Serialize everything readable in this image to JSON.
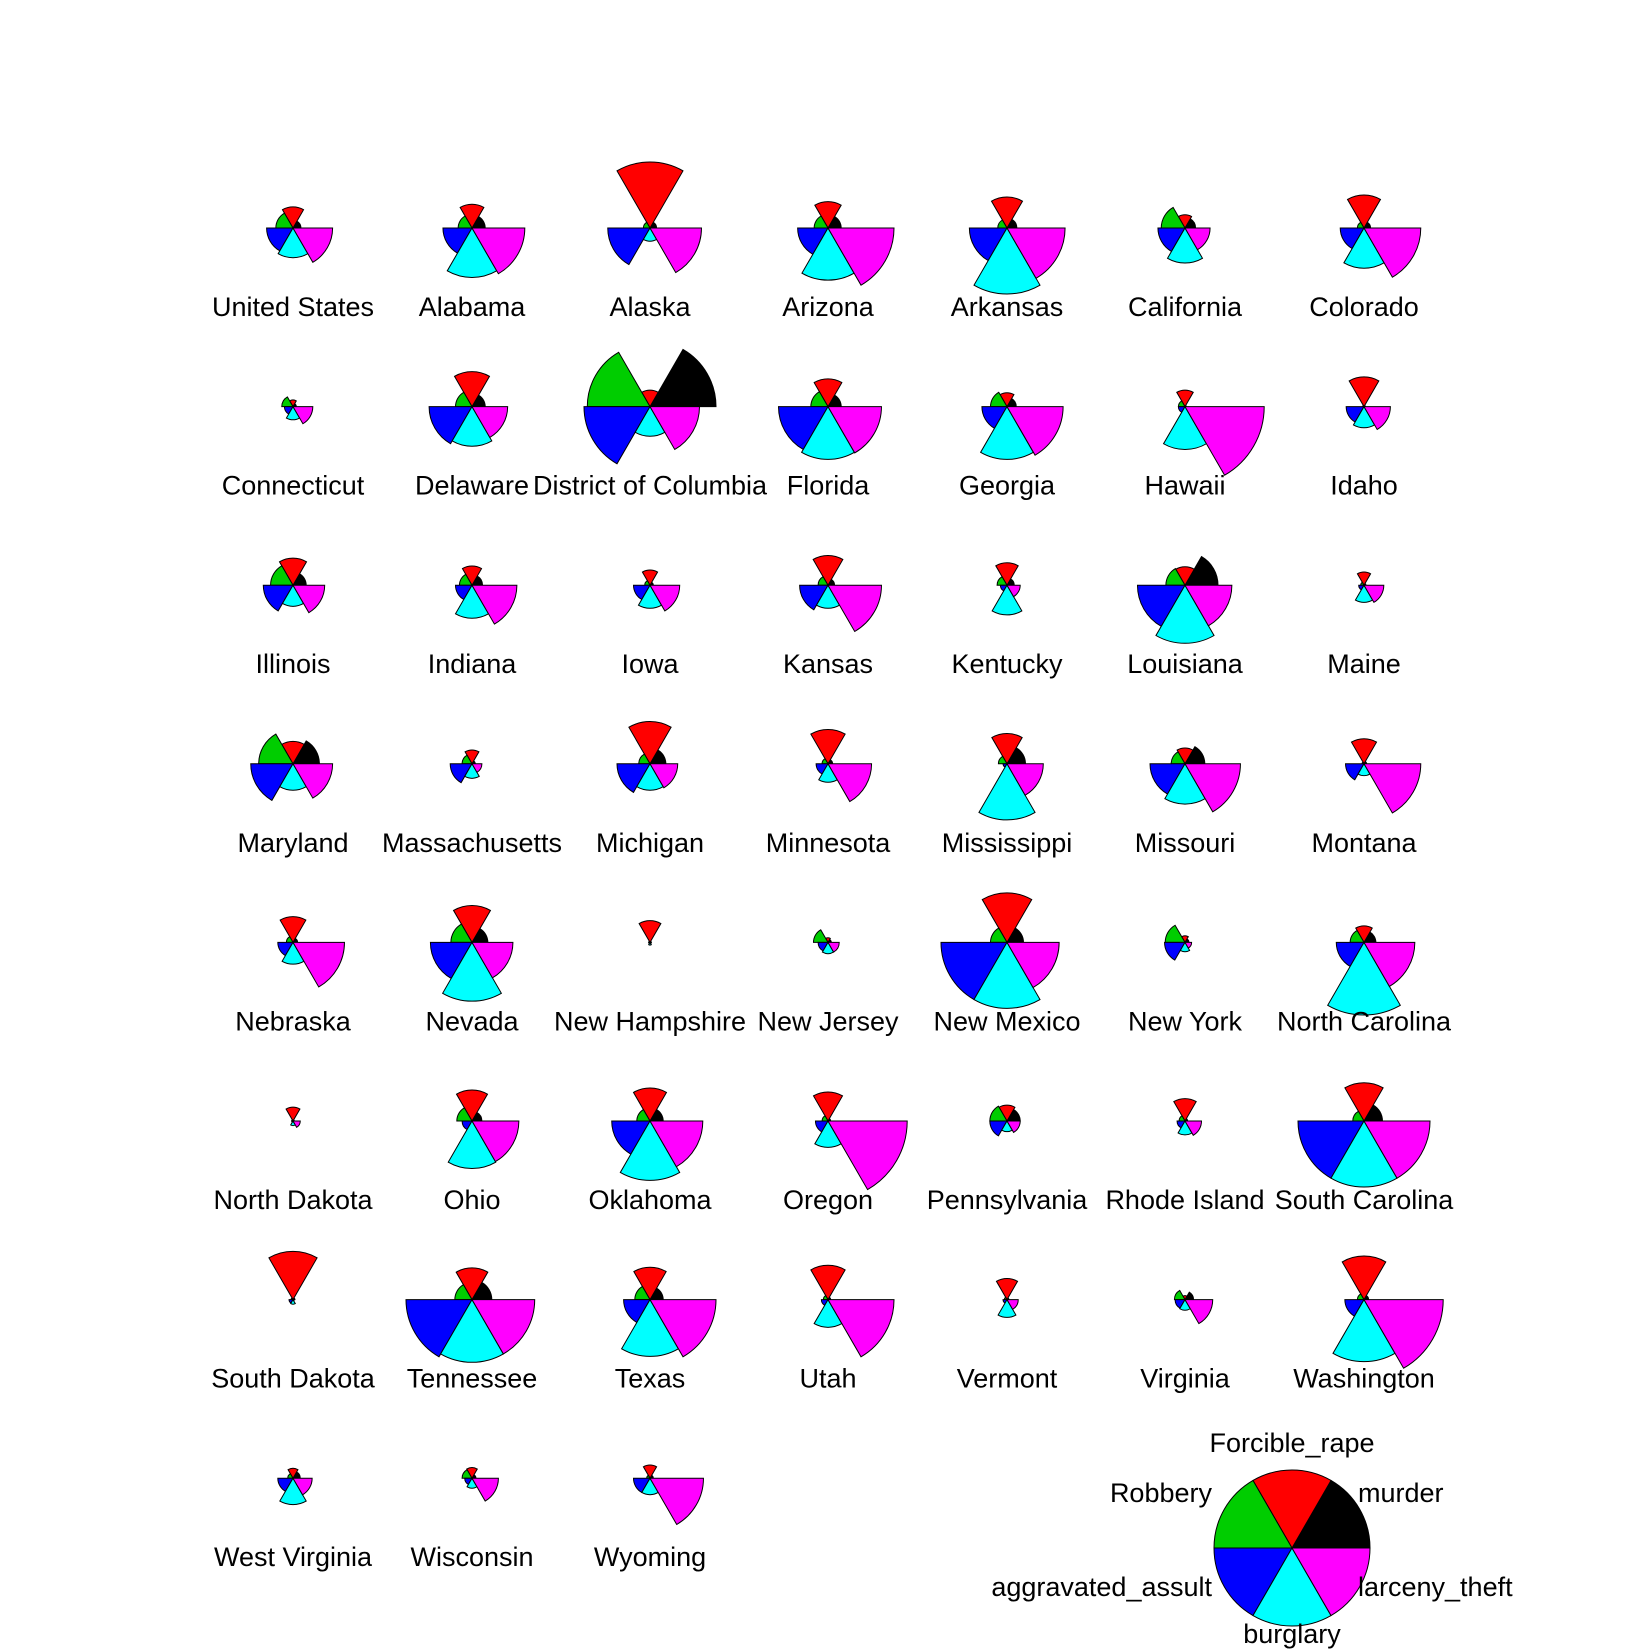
{
  "chart_data": {
    "type": "star-segment",
    "variables": [
      "murder",
      "Forcible_rape",
      "Robbery",
      "aggravated_assult",
      "burglary",
      "larceny_theft"
    ],
    "colors": [
      "#000000",
      "#ff0000",
      "#00cd00",
      "#0000ff",
      "#00ffff",
      "#ff00ff"
    ],
    "legend_position": "bottom-right",
    "states": [
      {
        "name": "United States",
        "values": [
          0.12,
          0.32,
          0.26,
          0.4,
          0.45,
          0.6
        ]
      },
      {
        "name": "Alabama",
        "values": [
          0.2,
          0.36,
          0.21,
          0.44,
          0.75,
          0.8
        ]
      },
      {
        "name": "Alaska",
        "values": [
          0.1,
          1.0,
          0.1,
          0.64,
          0.2,
          0.78
        ]
      },
      {
        "name": "Arizona",
        "values": [
          0.2,
          0.4,
          0.21,
          0.46,
          0.79,
          1.0
        ]
      },
      {
        "name": "Arkansas",
        "values": [
          0.15,
          0.47,
          0.14,
          0.57,
          1.0,
          0.88
        ]
      },
      {
        "name": "California",
        "values": [
          0.16,
          0.2,
          0.36,
          0.41,
          0.53,
          0.38
        ]
      },
      {
        "name": "Colorado",
        "values": [
          0.1,
          0.5,
          0.1,
          0.36,
          0.61,
          0.86
        ]
      },
      {
        "name": "Connecticut",
        "values": [
          0.05,
          0.1,
          0.17,
          0.13,
          0.2,
          0.3
        ]
      },
      {
        "name": "Delaware",
        "values": [
          0.2,
          0.53,
          0.25,
          0.65,
          0.6,
          0.54
        ]
      },
      {
        "name": "District of Columbia",
        "values": [
          1.0,
          0.25,
          0.95,
          1.0,
          0.45,
          0.75
        ]
      },
      {
        "name": "Florida",
        "values": [
          0.2,
          0.42,
          0.26,
          0.75,
          0.8,
          0.81
        ]
      },
      {
        "name": "Georgia",
        "values": [
          0.14,
          0.21,
          0.25,
          0.38,
          0.8,
          0.85
        ]
      },
      {
        "name": "Hawaii",
        "values": [
          0.02,
          0.25,
          0.1,
          0.1,
          0.65,
          1.2
        ]
      },
      {
        "name": "Idaho",
        "values": [
          0.02,
          0.45,
          0.02,
          0.27,
          0.32,
          0.4
        ]
      },
      {
        "name": "Illinois",
        "values": [
          0.2,
          0.41,
          0.34,
          0.45,
          0.32,
          0.48
        ]
      },
      {
        "name": "Indiana",
        "values": [
          0.16,
          0.29,
          0.19,
          0.25,
          0.5,
          0.68
        ]
      },
      {
        "name": "Iowa",
        "values": [
          0.05,
          0.23,
          0.08,
          0.25,
          0.35,
          0.45
        ]
      },
      {
        "name": "Kansas",
        "values": [
          0.1,
          0.45,
          0.15,
          0.43,
          0.35,
          0.81
        ]
      },
      {
        "name": "Kentucky",
        "values": [
          0.11,
          0.34,
          0.15,
          0.1,
          0.45,
          0.2
        ]
      },
      {
        "name": "Louisiana",
        "values": [
          0.5,
          0.28,
          0.29,
          0.72,
          0.88,
          0.71
        ]
      },
      {
        "name": "Maine",
        "values": [
          0.03,
          0.2,
          0.05,
          0.08,
          0.26,
          0.3
        ]
      },
      {
        "name": "Maryland",
        "values": [
          0.4,
          0.34,
          0.52,
          0.64,
          0.4,
          0.6
        ]
      },
      {
        "name": "Massachusetts",
        "values": [
          0.05,
          0.21,
          0.15,
          0.33,
          0.22,
          0.15
        ]
      },
      {
        "name": "Michigan",
        "values": [
          0.24,
          0.64,
          0.17,
          0.5,
          0.4,
          0.42
        ]
      },
      {
        "name": "Minnesota",
        "values": [
          0.07,
          0.52,
          0.09,
          0.18,
          0.28,
          0.66
        ]
      },
      {
        "name": "Mississippi",
        "values": [
          0.28,
          0.46,
          0.13,
          0.06,
          0.85,
          0.55
        ]
      },
      {
        "name": "Missouri",
        "values": [
          0.3,
          0.24,
          0.21,
          0.53,
          0.61,
          0.84
        ]
      },
      {
        "name": "Montana",
        "values": [
          0.04,
          0.38,
          0.03,
          0.28,
          0.18,
          0.86
        ]
      },
      {
        "name": "Nebraska",
        "values": [
          0.07,
          0.39,
          0.1,
          0.23,
          0.33,
          0.78
        ]
      },
      {
        "name": "Nevada",
        "values": [
          0.24,
          0.56,
          0.32,
          0.63,
          0.89,
          0.62
        ]
      },
      {
        "name": "New Hampshire",
        "values": [
          0.02,
          0.33,
          0.02,
          0.02,
          0.04,
          0.02
        ]
      },
      {
        "name": "New Jersey",
        "values": [
          0.05,
          0.07,
          0.22,
          0.15,
          0.17,
          0.17
        ]
      },
      {
        "name": "New Mexico",
        "values": [
          0.25,
          0.75,
          0.25,
          1.0,
          1.0,
          0.79
        ]
      },
      {
        "name": "New York",
        "values": [
          0.06,
          0.1,
          0.3,
          0.31,
          0.14,
          0.1
        ]
      },
      {
        "name": "North Carolina",
        "values": [
          0.18,
          0.25,
          0.21,
          0.42,
          1.1,
          0.77
        ]
      },
      {
        "name": "North Dakota",
        "values": [
          0.02,
          0.21,
          0.02,
          0.02,
          0.07,
          0.11
        ]
      },
      {
        "name": "Ohio",
        "values": [
          0.15,
          0.47,
          0.23,
          0.15,
          0.72,
          0.71
        ]
      },
      {
        "name": "Oklahoma",
        "values": [
          0.2,
          0.5,
          0.2,
          0.58,
          0.9,
          0.8
        ]
      },
      {
        "name": "Oregon",
        "values": [
          0.04,
          0.44,
          0.09,
          0.19,
          0.4,
          1.2
        ]
      },
      {
        "name": "Pennsylvania",
        "values": [
          0.2,
          0.24,
          0.26,
          0.26,
          0.16,
          0.2
        ]
      },
      {
        "name": "Rhode Island",
        "values": [
          0.04,
          0.34,
          0.09,
          0.12,
          0.21,
          0.25
        ]
      },
      {
        "name": "South Carolina",
        "values": [
          0.28,
          0.58,
          0.17,
          1.0,
          1.0,
          1.0
        ]
      },
      {
        "name": "South Dakota",
        "values": [
          0.03,
          0.73,
          0.03,
          0.06,
          0.07,
          0.02
        ]
      },
      {
        "name": "Tennessee",
        "values": [
          0.3,
          0.48,
          0.26,
          1.0,
          0.95,
          0.95
        ]
      },
      {
        "name": "Texas",
        "values": [
          0.2,
          0.49,
          0.23,
          0.4,
          0.86,
          1.0
        ]
      },
      {
        "name": "Utah",
        "values": [
          0.04,
          0.52,
          0.07,
          0.1,
          0.42,
          1.0
        ]
      },
      {
        "name": "Vermont",
        "values": [
          0.03,
          0.32,
          0.04,
          0.06,
          0.27,
          0.17
        ]
      },
      {
        "name": "Virginia",
        "values": [
          0.13,
          0.06,
          0.16,
          0.15,
          0.16,
          0.42
        ]
      },
      {
        "name": "Washington",
        "values": [
          0.07,
          0.66,
          0.1,
          0.29,
          0.94,
          1.2
        ]
      },
      {
        "name": "West Virginia",
        "values": [
          0.11,
          0.15,
          0.08,
          0.23,
          0.4,
          0.29
        ]
      },
      {
        "name": "Wisconsin",
        "values": [
          0.06,
          0.16,
          0.15,
          0.11,
          0.15,
          0.4
        ]
      },
      {
        "name": "Wyoming",
        "values": [
          0.05,
          0.2,
          0.05,
          0.25,
          0.25,
          0.81
        ]
      }
    ]
  }
}
